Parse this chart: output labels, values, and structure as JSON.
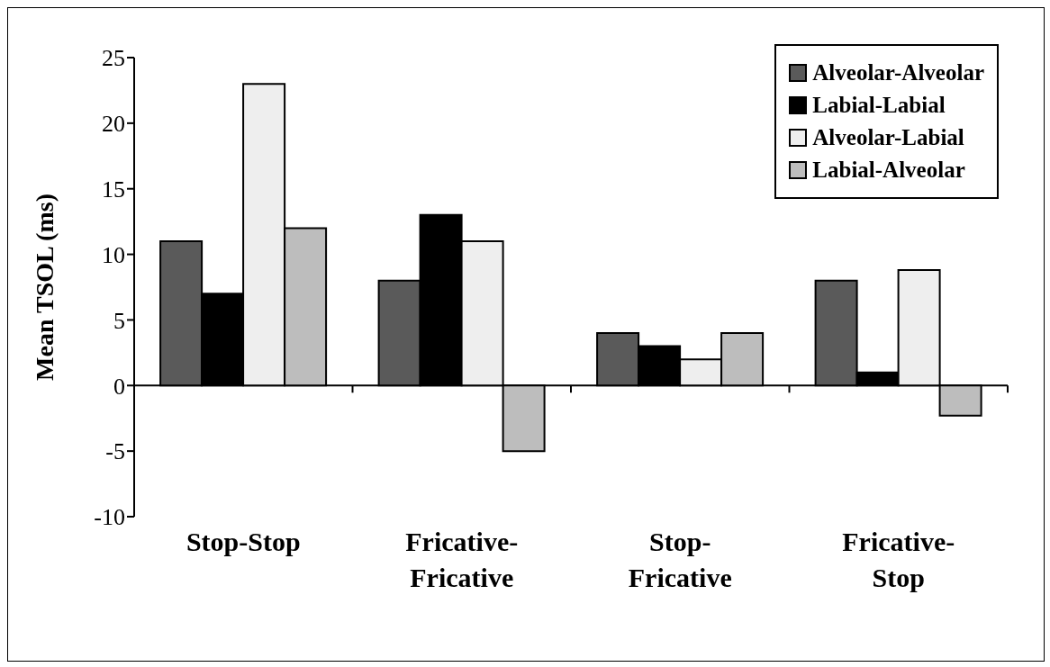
{
  "chart_data": {
    "type": "bar",
    "ylabel": "Mean TSOL (ms)",
    "categories": [
      "Stop-Stop",
      "Fricative-Fricative",
      "Stop-Fricative",
      "Fricative-Stop"
    ],
    "series": [
      {
        "name": "Alveolar-Alveolar",
        "color": "#5a5a5a",
        "values": [
          11,
          8,
          4,
          8
        ]
      },
      {
        "name": "Labial-Labial",
        "color": "#000000",
        "values": [
          7,
          13,
          3,
          1
        ]
      },
      {
        "name": "Alveolar-Labial",
        "color": "#eeeeee",
        "values": [
          23,
          11,
          2,
          8.8
        ]
      },
      {
        "name": "Labial-Alveolar",
        "color": "#bdbdbd",
        "values": [
          12,
          -5,
          4,
          -2.3
        ]
      }
    ],
    "ylim": [
      -10,
      25
    ],
    "yticks": [
      -10,
      -5,
      0,
      5,
      10,
      15,
      20,
      25
    ],
    "legend": "top right"
  }
}
